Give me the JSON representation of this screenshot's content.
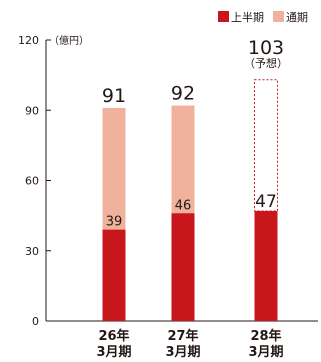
{
  "chart_data": {
    "type": "bar",
    "unit_label": "（億円）",
    "ylim": [
      0,
      120
    ],
    "yticks": [
      0,
      30,
      60,
      90,
      120
    ],
    "colors": {
      "first_half": "#c8161d",
      "full_year": "#f0b29c"
    },
    "legend": [
      {
        "name": "上半期",
        "color": "#c8161d"
      },
      {
        "name": "通期",
        "color": "#f0b29c"
      }
    ],
    "categories": [
      {
        "line1": "26年",
        "line2": "3月期"
      },
      {
        "line1": "27年",
        "line2": "3月期"
      },
      {
        "line1": "28年",
        "line2": "3月期"
      }
    ],
    "series": [
      {
        "name": "上半期",
        "values": [
          39,
          46,
          47
        ]
      },
      {
        "name": "通期",
        "values": [
          91,
          92,
          103
        ]
      }
    ],
    "forecast_index": 2,
    "forecast_note": "（予想）"
  }
}
